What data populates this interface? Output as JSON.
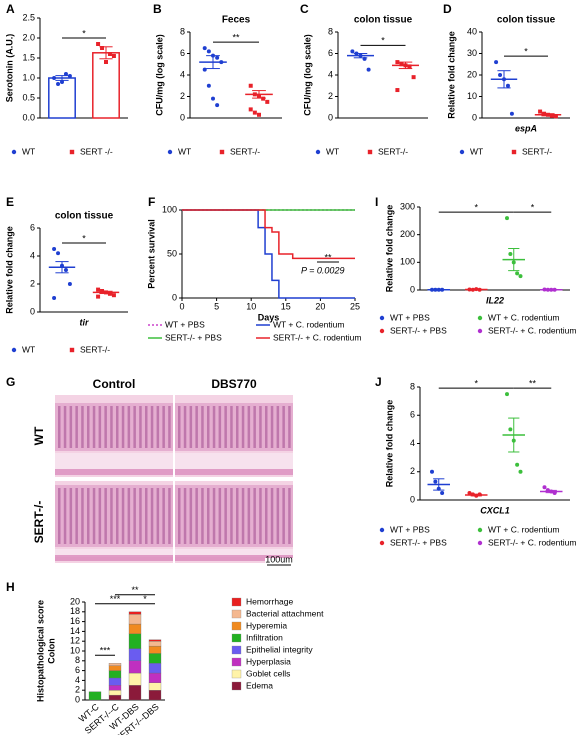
{
  "chart_data": [
    {
      "panel": "A",
      "type": "bar",
      "ylabel": "Serotonin (A.U.)",
      "ylim": [
        0,
        2.5
      ],
      "yticks": [
        {
          "value": 0,
          "label": "0.0"
        },
        0.5,
        {
          "value": 1,
          "label": "1.0"
        },
        1.5,
        {
          "value": 2,
          "label": "2.0"
        },
        2.5
      ],
      "series": [
        {
          "name": "WT",
          "color": "#1f3fd1",
          "marker": "circle",
          "values": [
            1.0,
            0.85,
            0.9,
            1.1,
            1.05
          ],
          "mean": 1.0,
          "sem": 0.06
        },
        {
          "name": "SERT -/-",
          "color": "#e8222a",
          "marker": "square",
          "values": [
            1.85,
            1.75,
            1.4,
            1.6,
            1.55
          ],
          "mean": 1.63,
          "sem": 0.15
        }
      ],
      "significance": [
        {
          "label": "*",
          "groups": [
            0,
            1
          ]
        }
      ]
    },
    {
      "panel": "B",
      "type": "dot",
      "title": "Feces",
      "ylabel": "CFU/mg (log scale)",
      "ylim": [
        0,
        8
      ],
      "yticks": [
        0,
        2,
        4,
        6,
        8
      ],
      "series": [
        {
          "name": "WT",
          "color": "#1f3fd1",
          "marker": "circle",
          "values": [
            6.5,
            6.2,
            5.8,
            5.6,
            5.2,
            4.5,
            3.0,
            1.8,
            1.2
          ],
          "mean": 5.2,
          "sem": 0.6
        },
        {
          "name": "SERT-/-",
          "color": "#e8222a",
          "marker": "square",
          "values": [
            3.0,
            2.2,
            2.0,
            1.8,
            1.5,
            0.8,
            0.5,
            0.3
          ],
          "mean": 2.2,
          "sem": 0.35
        }
      ],
      "significance": [
        {
          "label": "**",
          "groups": [
            0,
            1
          ]
        }
      ]
    },
    {
      "panel": "C",
      "type": "dot",
      "title": "colon tissue",
      "ylabel": "CFU/mg (log scale)",
      "ylim": [
        0,
        8
      ],
      "yticks": [
        0,
        2,
        4,
        6,
        8
      ],
      "series": [
        {
          "name": "WT",
          "color": "#1f3fd1",
          "marker": "circle",
          "values": [
            6.2,
            6.0,
            5.8,
            5.5,
            4.5
          ],
          "mean": 5.8,
          "sem": 0.2
        },
        {
          "name": "SERT-/-",
          "color": "#e8222a",
          "marker": "square",
          "values": [
            5.2,
            5.0,
            4.9,
            4.8,
            3.8,
            2.6
          ],
          "mean": 4.9,
          "sem": 0.3
        }
      ],
      "significance": [
        {
          "label": "*",
          "groups": [
            0,
            1
          ]
        }
      ]
    },
    {
      "panel": "D",
      "type": "dot",
      "title": "colon tissue",
      "ylabel": "Relative fold change",
      "xlabel": "espA",
      "ylim": [
        0,
        40
      ],
      "yticks": [
        0,
        10,
        20,
        30,
        40
      ],
      "series": [
        {
          "name": "WT",
          "color": "#1f3fd1",
          "marker": "circle",
          "values": [
            26,
            20,
            18,
            15,
            2
          ],
          "mean": 18,
          "sem": 4
        },
        {
          "name": "SERT-/-",
          "color": "#e8222a",
          "marker": "square",
          "values": [
            3,
            2,
            1.5,
            1,
            0.8
          ],
          "mean": 1.5,
          "sem": 0.5
        }
      ],
      "significance": [
        {
          "label": "*",
          "groups": [
            0,
            1
          ]
        }
      ]
    },
    {
      "panel": "E",
      "type": "dot",
      "title": "colon tissue",
      "ylabel": "Relative fold change",
      "xlabel": "tir",
      "ylim": [
        0,
        6
      ],
      "yticks": [
        0,
        2,
        4,
        6
      ],
      "series": [
        {
          "name": "WT",
          "color": "#1f3fd1",
          "marker": "circle",
          "values": [
            4.5,
            4.2,
            3.3,
            3.0,
            2.0,
            1.0
          ],
          "mean": 3.2,
          "sem": 0.4
        },
        {
          "name": "SERT-/-",
          "color": "#e8222a",
          "marker": "square",
          "values": [
            1.6,
            1.5,
            1.4,
            1.3,
            1.2,
            1.1
          ],
          "mean": 1.4,
          "sem": 0.08
        }
      ],
      "significance": [
        {
          "label": "*",
          "groups": [
            0,
            1
          ]
        }
      ]
    },
    {
      "panel": "F",
      "type": "line",
      "ylabel": "Percent survival",
      "xlabel": "Days",
      "xlim": [
        0,
        25
      ],
      "xticks": [
        0,
        5,
        10,
        15,
        20,
        25
      ],
      "ylim": [
        0,
        100
      ],
      "yticks": [
        0,
        50,
        100
      ],
      "x": [
        0,
        10,
        11,
        12,
        13,
        14,
        16,
        25
      ],
      "series": [
        {
          "name": "WT + PBS",
          "color": "#cc44cc",
          "dashed": true,
          "values": [
            100,
            100,
            100,
            100,
            100,
            100,
            100,
            100
          ]
        },
        {
          "name": "SERT-/- + PBS",
          "color": "#3cbf3c",
          "dashed": false,
          "values": [
            100,
            100,
            100,
            100,
            100,
            100,
            100,
            100
          ]
        },
        {
          "name": "WT + C. rodentium",
          "color": "#1f3fd1",
          "dashed": false,
          "values": [
            100,
            100,
            80,
            50,
            20,
            0,
            0,
            0
          ]
        },
        {
          "name": "SERT-/- + C. rodentium",
          "color": "#e8222a",
          "dashed": false,
          "values": [
            100,
            100,
            100,
            80,
            75,
            50,
            45,
            45
          ]
        }
      ],
      "annotations": [
        "**",
        "P = 0.0029"
      ]
    },
    {
      "panel": "I",
      "type": "dot",
      "ylabel": "Relative fold change",
      "xlabel": "IL22",
      "ylim": [
        0,
        300
      ],
      "yticks": [
        0,
        100,
        200,
        300
      ],
      "series": [
        {
          "name": "WT + PBS",
          "color": "#1f3fd1",
          "marker": "circle",
          "values": [
            1,
            1,
            1,
            1
          ],
          "mean": 1,
          "sem": 0
        },
        {
          "name": "SERT-/- + PBS",
          "color": "#e8222a",
          "marker": "circle",
          "values": [
            2,
            1,
            3,
            1
          ],
          "mean": 2,
          "sem": 0.5
        },
        {
          "name": "WT + C. rodentium",
          "color": "#3cbf3c",
          "marker": "circle",
          "values": [
            260,
            130,
            100,
            60,
            50
          ],
          "mean": 110,
          "sem": 40
        },
        {
          "name": "SERT-/- + C. rodentium",
          "color": "#b030d0",
          "marker": "circle",
          "values": [
            2,
            1,
            1,
            1
          ],
          "mean": 1,
          "sem": 0.3
        }
      ],
      "significance": [
        {
          "label": "*",
          "groups": [
            0,
            2
          ]
        },
        {
          "label": "*",
          "groups": [
            2,
            3
          ]
        }
      ]
    },
    {
      "panel": "J",
      "type": "dot",
      "ylabel": "Relative fold change",
      "xlabel": "CXCL1",
      "ylim": [
        0,
        8
      ],
      "yticks": [
        0,
        2,
        4,
        6,
        8
      ],
      "series": [
        {
          "name": "WT + PBS",
          "color": "#1f3fd1",
          "marker": "circle",
          "values": [
            2.0,
            1.3,
            0.8,
            0.5
          ],
          "mean": 1.1,
          "sem": 0.4
        },
        {
          "name": "SERT-/- + PBS",
          "color": "#e8222a",
          "marker": "circle",
          "values": [
            0.5,
            0.4,
            0.3,
            0.4
          ],
          "mean": 0.35,
          "sem": 0.06
        },
        {
          "name": "WT + C. rodentium",
          "color": "#3cbf3c",
          "marker": "circle",
          "values": [
            7.5,
            5.0,
            4.2,
            2.5,
            2.0
          ],
          "mean": 4.6,
          "sem": 1.2
        },
        {
          "name": "SERT-/- + C. rodentium",
          "color": "#b030d0",
          "marker": "circle",
          "values": [
            0.9,
            0.7,
            0.6,
            0.5
          ],
          "mean": 0.6,
          "sem": 0.08
        }
      ],
      "significance": [
        {
          "label": "*",
          "groups": [
            0,
            2
          ]
        },
        {
          "label": "**",
          "groups": [
            2,
            3
          ]
        }
      ]
    },
    {
      "panel": "H",
      "type": "stacked_bar",
      "ylabel": [
        "Histopathological score",
        "Colon"
      ],
      "ylim": [
        0,
        20
      ],
      "yticks": [
        0,
        2,
        4,
        6,
        8,
        10,
        12,
        14,
        16,
        18,
        20
      ],
      "categories": [
        "WT-C",
        "SERT-/--C",
        "WT-DBS",
        "SERT-/--DBS"
      ],
      "series": [
        {
          "name": "Edema",
          "color": "#8b1a3a",
          "values": [
            0,
            1.0,
            3.0,
            2.0
          ]
        },
        {
          "name": "Goblet cells",
          "color": "#fff3a8",
          "values": [
            0,
            1.0,
            2.5,
            1.5
          ]
        },
        {
          "name": "Hyperplasia",
          "color": "#c030c0",
          "values": [
            0,
            1.0,
            2.5,
            2.0
          ]
        },
        {
          "name": "Epithelial integrity",
          "color": "#6a5cf0",
          "values": [
            0,
            1.5,
            2.5,
            2.0
          ]
        },
        {
          "name": "Infiltration",
          "color": "#22b022",
          "values": [
            1.7,
            1.5,
            3.0,
            2.0
          ]
        },
        {
          "name": "Hyperemia",
          "color": "#f08a20",
          "values": [
            0,
            1.0,
            2.0,
            1.5
          ]
        },
        {
          "name": "Bacterial attachment",
          "color": "#f4b890",
          "values": [
            0,
            0.5,
            2.0,
            1.0
          ]
        },
        {
          "name": "Hemorrhage",
          "color": "#e82020",
          "values": [
            0,
            0,
            0.5,
            0.3
          ]
        }
      ],
      "significance": [
        {
          "label": "***",
          "groups": [
            0,
            1
          ]
        },
        {
          "label": "***",
          "groups": [
            0,
            2
          ]
        },
        {
          "label": "*",
          "groups": [
            2,
            3
          ]
        },
        {
          "label": "**",
          "groups": [
            1,
            3
          ]
        }
      ]
    }
  ],
  "histology": {
    "panel": "G",
    "columns": [
      "Control",
      "DBS770"
    ],
    "rows": [
      "WT",
      "SERT-/-"
    ],
    "scale_bar": "100um"
  }
}
